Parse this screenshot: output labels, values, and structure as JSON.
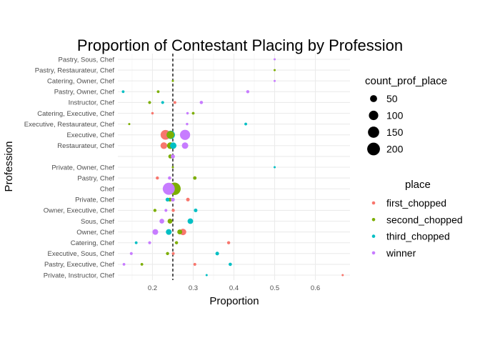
{
  "chart_data": {
    "type": "scatter",
    "title": "Proportion of Contestant Placing by Profession",
    "xlabel": "Proportion",
    "ylabel": "Profession",
    "xlim": [
      0.115,
      0.685
    ],
    "x_ticks": [
      0.2,
      0.3,
      0.4,
      0.5,
      0.6
    ],
    "x_tick_labels": [
      "0.2",
      "0.3",
      "0.4",
      "0.5",
      "0.6"
    ],
    "reference_line_x": 0.25,
    "categories": [
      "Pastry, Sous, Chef",
      "Pastry, Restaurateur, Chef",
      "Catering, Owner, Chef",
      "Pastry, Owner, Chef",
      "Instructor, Chef",
      "Catering, Executive, Chef",
      "Executive, Restaurateur, Chef",
      "Executive, Chef",
      "Restaurateur, Chef",
      "",
      "Private, Owner, Chef",
      "Pastry, Chef",
      "Chef",
      "Private, Chef",
      "Owner, Executive, Chef",
      "Sous, Chef",
      "Owner, Chef",
      "Catering, Chef",
      "Executive, Sous, Chef",
      "Pastry, Executive, Chef",
      "Private, Instructor, Chef"
    ],
    "size_legend": {
      "title": "count_prof_place",
      "breaks": [
        50,
        100,
        150,
        200
      ],
      "range": [
        1,
        230
      ]
    },
    "color_legend": {
      "title": "place",
      "entries": [
        "first_chopped",
        "second_chopped",
        "third_chopped",
        "winner"
      ]
    },
    "colors": {
      "first_chopped": "#F8766D",
      "second_chopped": "#7CAE00",
      "third_chopped": "#00BFC4",
      "winner": "#C77CFF"
    },
    "grid": true,
    "legend_position": "right",
    "series": [
      {
        "name": "first_chopped",
        "points": [
          {
            "category": "Instructor, Chef",
            "x": 0.255,
            "count": 4
          },
          {
            "category": "Catering, Executive, Chef",
            "x": 0.2,
            "count": 2
          },
          {
            "category": "Executive, Chef",
            "x": 0.232,
            "count": 110
          },
          {
            "category": "Restaurateur, Chef",
            "x": 0.228,
            "count": 45
          },
          {
            "category": "Pastry, Chef",
            "x": 0.212,
            "count": 5
          },
          {
            "category": "Private, Chef",
            "x": 0.287,
            "count": 8
          },
          {
            "category": "Owner, Executive, Chef",
            "x": 0.251,
            "count": 5
          },
          {
            "category": "Sous, Chef",
            "x": 0.243,
            "count": 18
          },
          {
            "category": "Owner, Chef",
            "x": 0.275,
            "count": 40
          },
          {
            "category": "Catering, Chef",
            "x": 0.387,
            "count": 5
          },
          {
            "category": "Executive, Sous, Chef",
            "x": 0.251,
            "count": 4
          },
          {
            "category": "Pastry, Executive, Chef",
            "x": 0.304,
            "count": 4
          },
          {
            "category": "Private, Instructor, Chef",
            "x": 0.667,
            "count": 1
          }
        ]
      },
      {
        "name": "second_chopped",
        "points": [
          {
            "category": "Pastry, Restaurateur, Chef",
            "x": 0.5,
            "count": 1
          },
          {
            "category": "Catering, Owner, Chef",
            "x": 0.25,
            "count": 1
          },
          {
            "category": "Pastry, Owner, Chef",
            "x": 0.214,
            "count": 3
          },
          {
            "category": "Instructor, Chef",
            "x": 0.193,
            "count": 4
          },
          {
            "category": "Catering, Executive, Chef",
            "x": 0.3,
            "count": 3
          },
          {
            "category": "Executive, Restaurateur, Chef",
            "x": 0.143,
            "count": 1
          },
          {
            "category": "Executive, Chef",
            "x": 0.244,
            "count": 60
          },
          {
            "category": "Restaurateur, Chef",
            "x": 0.244,
            "count": 45
          },
          {
            "category": "",
            "x": 0.244,
            "count": 12
          },
          {
            "category": "Private, Owner, Chef",
            "x": 0.25,
            "count": 1
          },
          {
            "category": "Pastry, Chef",
            "x": 0.304,
            "count": 7
          },
          {
            "category": "Chef",
            "x": 0.254,
            "count": 190
          },
          {
            "category": "Private, Chef",
            "x": 0.243,
            "count": 10
          },
          {
            "category": "Owner, Executive, Chef",
            "x": 0.206,
            "count": 5
          },
          {
            "category": "Sous, Chef",
            "x": 0.243,
            "count": 18
          },
          {
            "category": "Owner, Chef",
            "x": 0.267,
            "count": 20
          },
          {
            "category": "Catering, Chef",
            "x": 0.259,
            "count": 5
          },
          {
            "category": "Executive, Sous, Chef",
            "x": 0.237,
            "count": 5
          },
          {
            "category": "Pastry, Executive, Chef",
            "x": 0.174,
            "count": 3
          }
        ]
      },
      {
        "name": "third_chopped",
        "points": [
          {
            "category": "Pastry, Owner, Chef",
            "x": 0.128,
            "count": 3
          },
          {
            "category": "Instructor, Chef",
            "x": 0.225,
            "count": 4
          },
          {
            "category": "Executive, Restaurateur, Chef",
            "x": 0.429,
            "count": 3
          },
          {
            "category": "Executive, Chef",
            "x": 0.245,
            "count": 75
          },
          {
            "category": "Restaurateur, Chef",
            "x": 0.251,
            "count": 40
          },
          {
            "category": "Private, Owner, Chef",
            "x": 0.5,
            "count": 1
          },
          {
            "category": "Private, Chef",
            "x": 0.237,
            "count": 10
          },
          {
            "category": "Owner, Executive, Chef",
            "x": 0.306,
            "count": 8
          },
          {
            "category": "Sous, Chef",
            "x": 0.293,
            "count": 28
          },
          {
            "category": "Owner, Chef",
            "x": 0.24,
            "count": 30
          },
          {
            "category": "Catering, Chef",
            "x": 0.16,
            "count": 3
          },
          {
            "category": "Executive, Sous, Chef",
            "x": 0.359,
            "count": 8
          },
          {
            "category": "Pastry, Executive, Chef",
            "x": 0.391,
            "count": 6
          },
          {
            "category": "Private, Instructor, Chef",
            "x": 0.333,
            "count": 1
          }
        ]
      },
      {
        "name": "winner",
        "points": [
          {
            "category": "Pastry, Sous, Chef",
            "x": 0.5,
            "count": 1
          },
          {
            "category": "Catering, Owner, Chef",
            "x": 0.5,
            "count": 1
          },
          {
            "category": "Pastry, Owner, Chef",
            "x": 0.434,
            "count": 5
          },
          {
            "category": "Instructor, Chef",
            "x": 0.32,
            "count": 6
          },
          {
            "category": "Catering, Executive, Chef",
            "x": 0.286,
            "count": 2
          },
          {
            "category": "Executive, Restaurateur, Chef",
            "x": 0.285,
            "count": 2
          },
          {
            "category": "Executive, Chef",
            "x": 0.28,
            "count": 120
          },
          {
            "category": "Restaurateur, Chef",
            "x": 0.28,
            "count": 40
          },
          {
            "category": "",
            "x": 0.25,
            "count": 12
          },
          {
            "category": "Pastry, Chef",
            "x": 0.242,
            "count": 6
          },
          {
            "category": "Chef",
            "x": 0.24,
            "count": 175
          },
          {
            "category": "Private, Chef",
            "x": 0.25,
            "count": 10
          },
          {
            "category": "Owner, Executive, Chef",
            "x": 0.233,
            "count": 4
          },
          {
            "category": "Sous, Chef",
            "x": 0.223,
            "count": 18
          },
          {
            "category": "Owner, Chef",
            "x": 0.207,
            "count": 30
          },
          {
            "category": "Catering, Chef",
            "x": 0.193,
            "count": 4
          },
          {
            "category": "Executive, Sous, Chef",
            "x": 0.148,
            "count": 4
          },
          {
            "category": "Pastry, Executive, Chef",
            "x": 0.13,
            "count": 3
          }
        ]
      }
    ]
  }
}
